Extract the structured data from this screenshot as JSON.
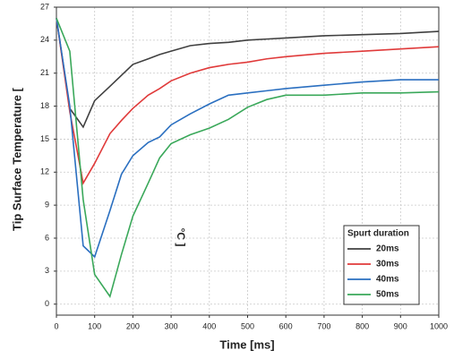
{
  "chart_data": {
    "type": "line",
    "x_label": "Time [ms]",
    "y_label": "Tip Surface Temperature [",
    "annotation": "°C ]",
    "x": [
      0,
      35,
      70,
      100,
      140,
      170,
      200,
      240,
      270,
      300,
      350,
      400,
      450,
      500,
      550,
      600,
      700,
      800,
      900,
      1000
    ],
    "series": [
      {
        "name": "20ms",
        "color": "#404040",
        "values": [
          26,
          17.8,
          16.1,
          18.5,
          19.8,
          20.8,
          21.8,
          22.3,
          22.7,
          23,
          23.5,
          23.7,
          23.8,
          24,
          24.1,
          24.2,
          24.4,
          24.5,
          24.6,
          24.8
        ]
      },
      {
        "name": "30ms",
        "color": "#e03a3a",
        "values": [
          26,
          17.5,
          11,
          12.8,
          15.5,
          16.7,
          17.8,
          19,
          19.6,
          20.3,
          21,
          21.5,
          21.8,
          22,
          22.3,
          22.5,
          22.8,
          23,
          23.2,
          23.4
        ]
      },
      {
        "name": "40ms",
        "color": "#2a6fc0",
        "values": [
          26,
          18,
          5.3,
          4.3,
          8.5,
          11.8,
          13.5,
          14.7,
          15.2,
          16.3,
          17.3,
          18.2,
          19,
          19.2,
          19.4,
          19.6,
          19.9,
          20.2,
          20.4,
          20.4
        ]
      },
      {
        "name": "50ms",
        "color": "#3aa85a",
        "values": [
          26,
          23,
          9.5,
          2.7,
          0.7,
          4.5,
          8,
          11,
          13.3,
          14.6,
          15.4,
          16,
          16.8,
          17.9,
          18.6,
          19,
          19,
          19.2,
          19.2,
          19.3
        ]
      }
    ],
    "legend_title": "Spurt duration",
    "legend": "lower right",
    "xlim": [
      0,
      1000
    ],
    "xticks": [
      0,
      100,
      200,
      300,
      400,
      500,
      600,
      700,
      800,
      900,
      1000
    ],
    "ylim": [
      -1,
      27
    ],
    "yticks": [
      0,
      3,
      6,
      9,
      12,
      15,
      18,
      21,
      24,
      27
    ],
    "grid": true
  }
}
